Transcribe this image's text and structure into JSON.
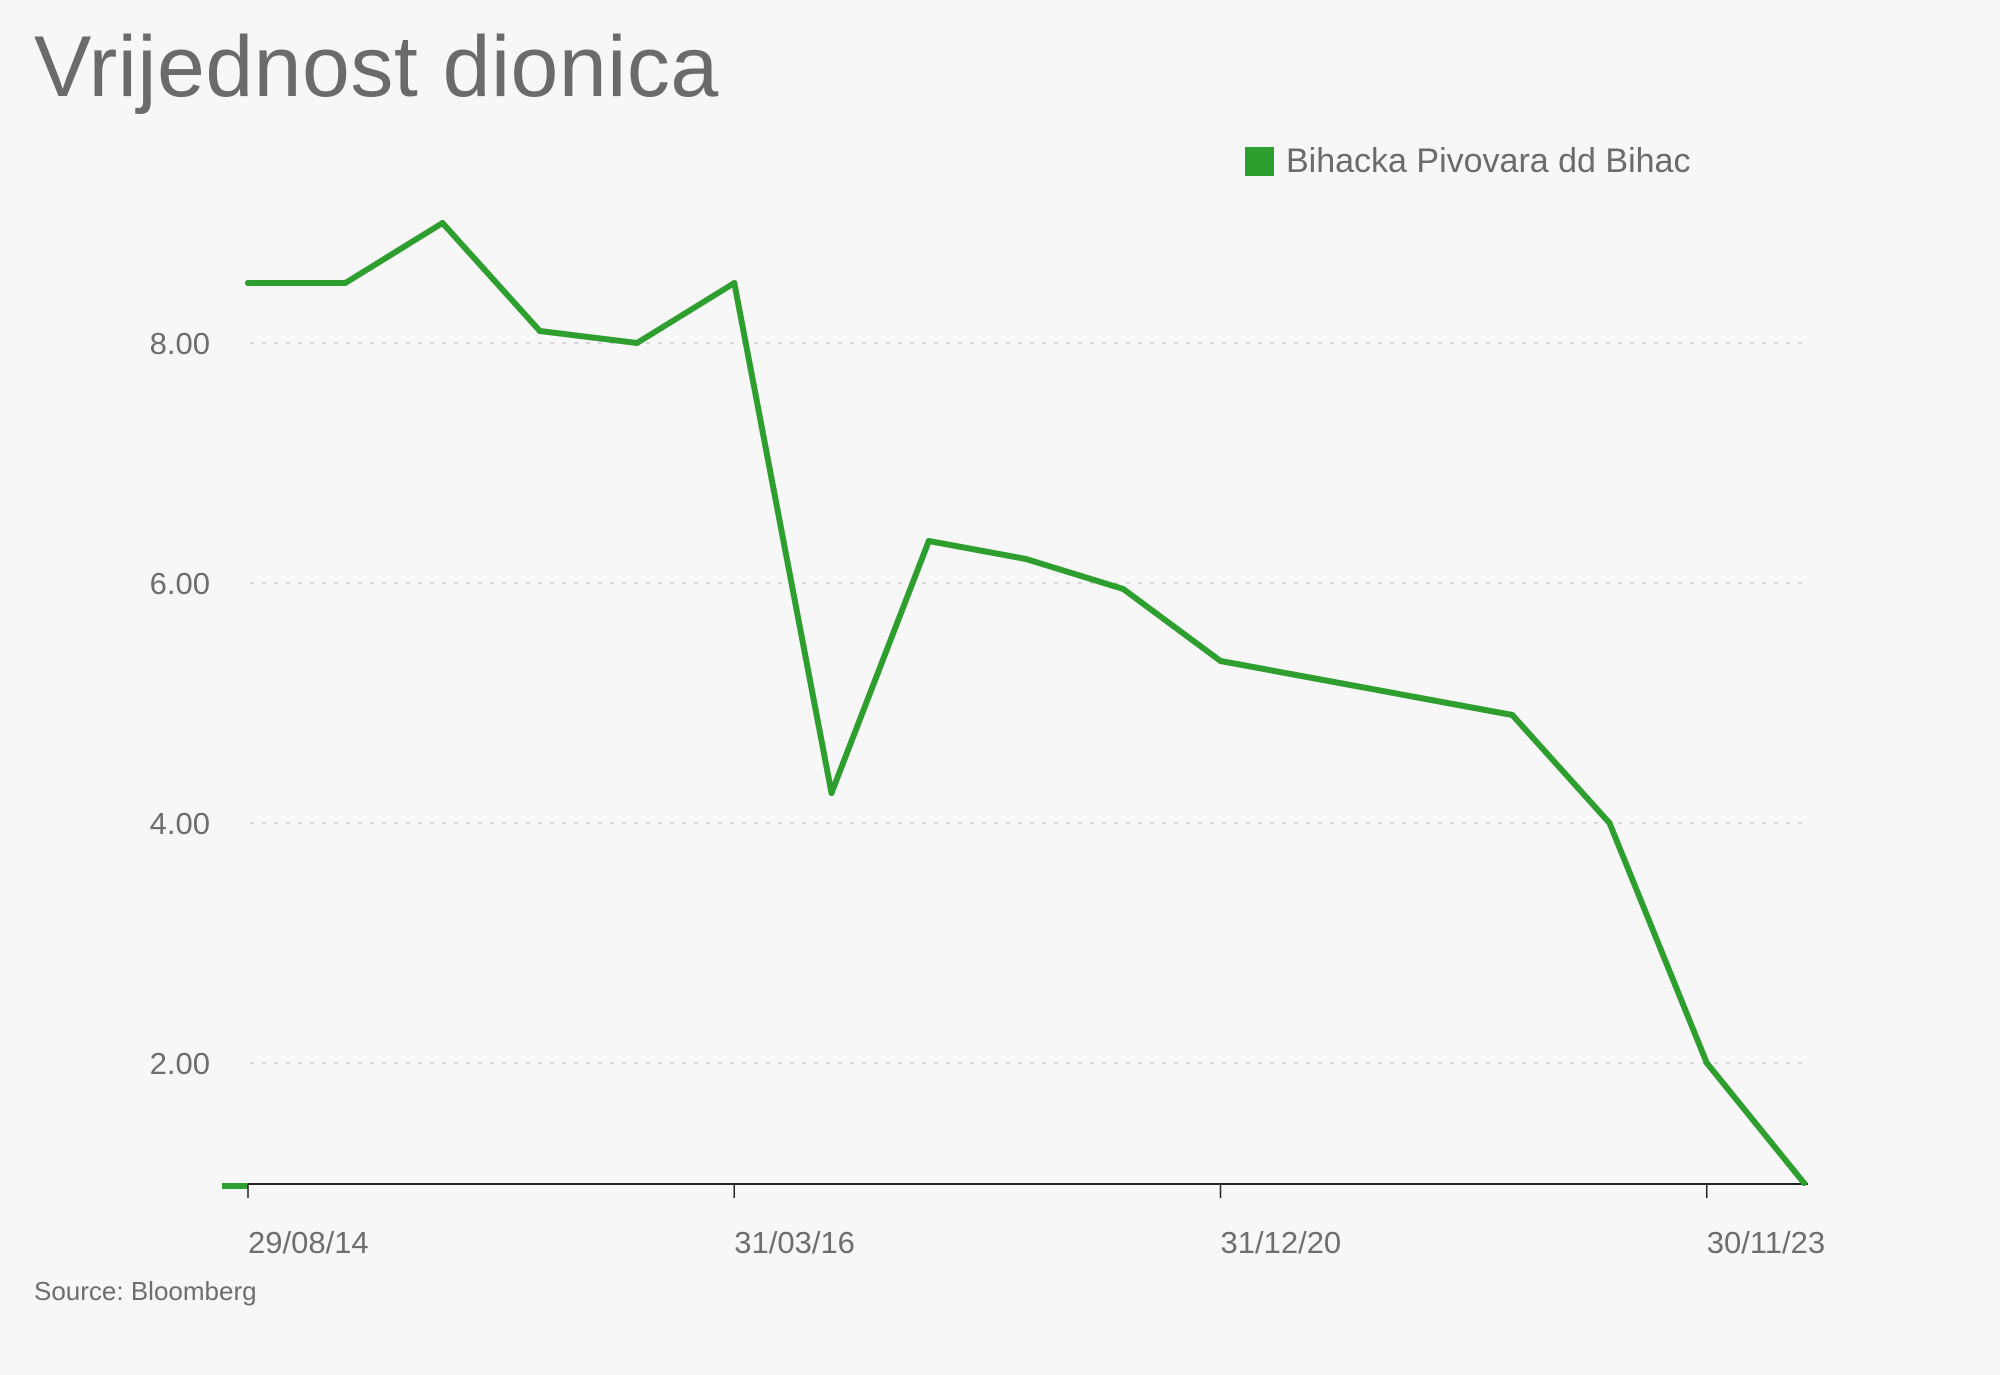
{
  "chart_data": {
    "type": "line",
    "title": "Vrijednost dionica",
    "source": "Source: Bloomberg",
    "legend_position": "top-right",
    "grid": true,
    "ylim": [
      1.0,
      9.6
    ],
    "yticks": [
      2.0,
      4.0,
      6.0,
      8.0
    ],
    "ytick_labels": [
      "2.00",
      "4.00",
      "6.00",
      "8.00"
    ],
    "x": [
      "29/08/14",
      "P2",
      "P3",
      "P4",
      "P5",
      "31/03/16",
      "P7",
      "P8",
      "P9",
      "P10",
      "31/12/20",
      "P12",
      "P13",
      "P14",
      "P15",
      "30/11/23",
      "P17"
    ],
    "xtick_labels": [
      {
        "index": 0,
        "label": "29/08/14"
      },
      {
        "index": 5,
        "label": "31/03/16"
      },
      {
        "index": 10,
        "label": "31/12/20"
      },
      {
        "index": 15,
        "label": "30/11/23"
      }
    ],
    "series": [
      {
        "name": "Bihacka Pivovara dd Bihac",
        "color": "#2e9e2e",
        "values": [
          8.5,
          8.5,
          9.0,
          8.1,
          8.0,
          8.5,
          4.25,
          6.35,
          6.2,
          5.95,
          5.35,
          5.2,
          5.05,
          4.9,
          4.0,
          2.0,
          1.0
        ]
      }
    ]
  },
  "colors": {
    "background": "#f7f7f7",
    "line": "#2e9e2e",
    "grid": "#d6d6d6",
    "axis": "#222222",
    "text": "#6e6e6e"
  }
}
